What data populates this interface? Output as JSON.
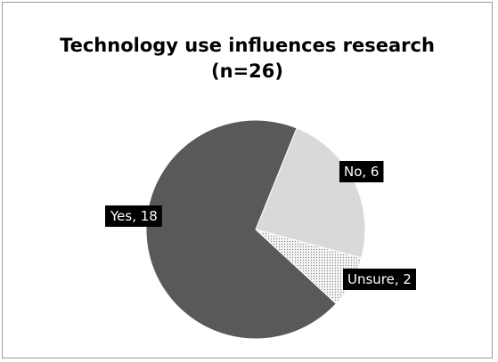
{
  "chart_data": {
    "type": "pie",
    "title": "Technology use influences research",
    "subtitle": "(n=26)",
    "slices": [
      {
        "name": "No",
        "value": 6,
        "label": "No, 6",
        "color": "#d9d9d9",
        "pattern": "solid"
      },
      {
        "name": "Unsure",
        "value": 2,
        "label": "Unsure, 2",
        "color": "#f2f2f2",
        "pattern": "dotted"
      },
      {
        "name": "Yes",
        "value": 18,
        "label": "Yes, 18",
        "color": "#595959",
        "pattern": "solid"
      }
    ],
    "start_angle_deg": 22,
    "legend": "none"
  }
}
